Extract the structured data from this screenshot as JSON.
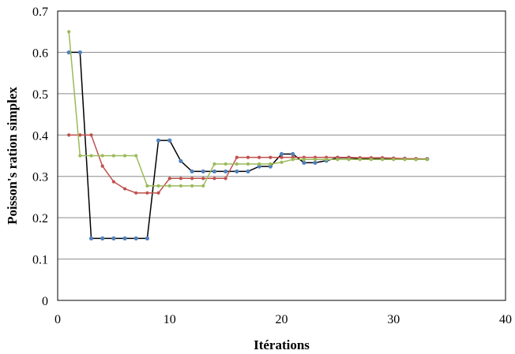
{
  "chart_data": {
    "type": "line",
    "title": "",
    "xlabel": "Itérations",
    "ylabel": "Poisson's  ration simplex",
    "xlim": [
      0,
      40
    ],
    "ylim": [
      0,
      0.7
    ],
    "x_ticks": [
      0,
      10,
      20,
      30,
      40
    ],
    "y_ticks": [
      0,
      0.1,
      0.2,
      0.3,
      0.4,
      0.5,
      0.6,
      0.7
    ],
    "y_tick_labels": [
      "0",
      "0.1",
      "0.2",
      "0.3",
      "0.4",
      "0.5",
      "0.6",
      "0.7"
    ],
    "grid": "horizontal",
    "legend": "none",
    "series": [
      {
        "color": "#4f81bd",
        "line_color": "#000000",
        "x": [
          1,
          2,
          3,
          4,
          5,
          6,
          7,
          8,
          9,
          10,
          11,
          12,
          13,
          14,
          15,
          16,
          17,
          18,
          19,
          20,
          21,
          22,
          23,
          24,
          25,
          26,
          27,
          28,
          29,
          30,
          31,
          32,
          33
        ],
        "y": [
          0.6,
          0.6,
          0.15,
          0.15,
          0.15,
          0.15,
          0.15,
          0.15,
          0.387,
          0.387,
          0.337,
          0.312,
          0.312,
          0.312,
          0.312,
          0.312,
          0.312,
          0.324,
          0.324,
          0.354,
          0.354,
          0.333,
          0.333,
          0.338,
          0.345,
          0.345,
          0.343,
          0.343,
          0.343,
          0.343,
          0.343,
          0.342,
          0.342
        ]
      },
      {
        "color": "#c0504d",
        "line_color": "#c0504d",
        "x": [
          1,
          2,
          3,
          4,
          5,
          6,
          7,
          8,
          9,
          10,
          11,
          12,
          13,
          14,
          15,
          16,
          17,
          18,
          19,
          20,
          21,
          22,
          23,
          24,
          25,
          26,
          27,
          28,
          29,
          30,
          31,
          32,
          33
        ],
        "y": [
          0.4,
          0.4,
          0.4,
          0.325,
          0.287,
          0.27,
          0.26,
          0.26,
          0.26,
          0.295,
          0.295,
          0.295,
          0.295,
          0.295,
          0.295,
          0.346,
          0.346,
          0.346,
          0.346,
          0.346,
          0.346,
          0.346,
          0.346,
          0.346,
          0.346,
          0.346,
          0.345,
          0.345,
          0.345,
          0.344,
          0.343,
          0.343,
          0.342
        ]
      },
      {
        "color": "#9bbb59",
        "line_color": "#9bbb59",
        "x": [
          1,
          2,
          3,
          4,
          5,
          6,
          7,
          8,
          9,
          10,
          11,
          12,
          13,
          14,
          15,
          16,
          17,
          18,
          19,
          20,
          21,
          22,
          23,
          24,
          25,
          26,
          27,
          28,
          29,
          30,
          31,
          32,
          33
        ],
        "y": [
          0.65,
          0.35,
          0.35,
          0.35,
          0.35,
          0.35,
          0.35,
          0.277,
          0.277,
          0.277,
          0.277,
          0.277,
          0.277,
          0.33,
          0.33,
          0.33,
          0.33,
          0.33,
          0.33,
          0.334,
          0.341,
          0.341,
          0.341,
          0.341,
          0.341,
          0.341,
          0.341,
          0.341,
          0.341,
          0.341,
          0.341,
          0.341,
          0.341
        ]
      }
    ]
  }
}
